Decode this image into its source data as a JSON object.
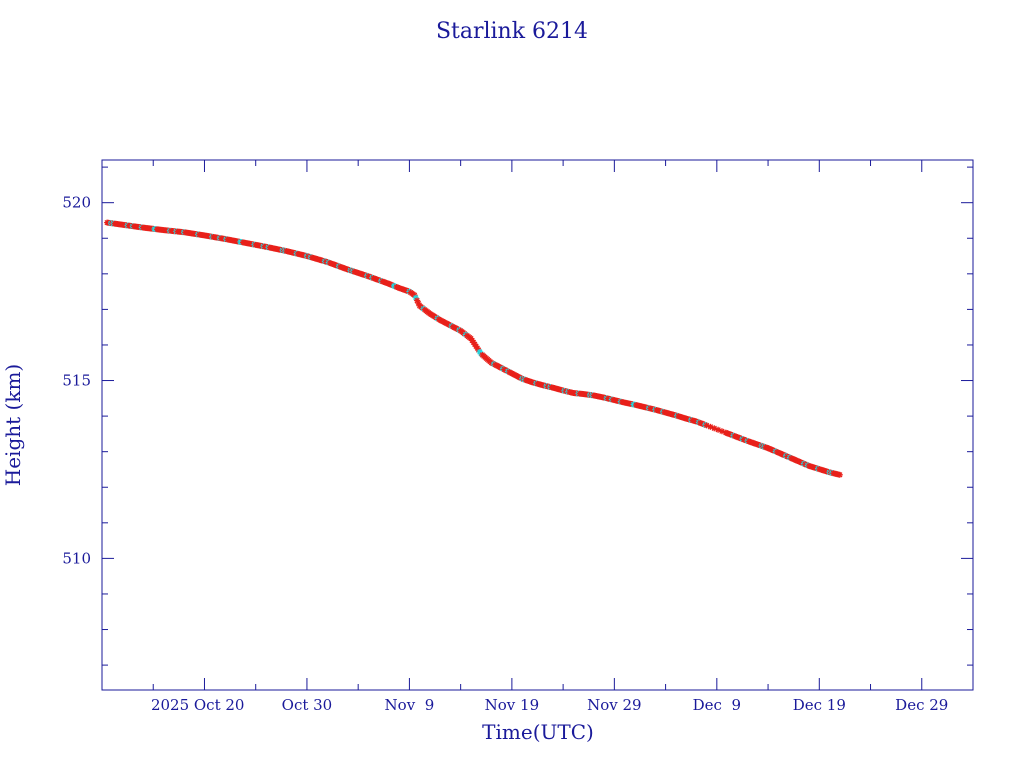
{
  "chart_data": {
    "type": "scatter",
    "title": "Starlink 6214",
    "xlabel": "Time(UTC)",
    "ylabel": "Height (km)",
    "colors": {
      "axis": "#1a1a9a",
      "text": "#1a1a9a",
      "line": "#1a1a1a",
      "marker": "#e8201a",
      "marker_highlight": "#22d8e0"
    },
    "x_axis": {
      "unit": "date",
      "range": [
        "2025-10-10",
        "2026-01-03"
      ],
      "major_ticks": [
        {
          "date": "2025-10-20",
          "label": "2025 Oct 20"
        },
        {
          "date": "2025-10-30",
          "label": "Oct 30"
        },
        {
          "date": "2025-11-09",
          "label": "Nov  9"
        },
        {
          "date": "2025-11-19",
          "label": "Nov 19"
        },
        {
          "date": "2025-11-29",
          "label": "Nov 29"
        },
        {
          "date": "2025-12-09",
          "label": "Dec  9"
        },
        {
          "date": "2025-12-19",
          "label": "Dec 19"
        },
        {
          "date": "2025-12-29",
          "label": "Dec 29"
        }
      ],
      "minor_ticks": [
        "2025-10-15",
        "2025-10-25",
        "2025-11-04",
        "2025-11-14",
        "2025-11-24",
        "2025-12-04",
        "2025-12-14",
        "2025-12-24",
        "2026-01-03"
      ]
    },
    "y_axis": {
      "range": [
        506.3,
        521.2
      ],
      "major_ticks": [
        510,
        515,
        520
      ],
      "tick_labels": [
        "510",
        "515",
        "520"
      ],
      "minor_step": 1
    },
    "grid": false,
    "series": [
      {
        "points": [
          [
            "2025-10-10T12:00",
            519.44
          ],
          [
            "2025-10-12",
            519.38
          ],
          [
            "2025-10-14",
            519.3
          ],
          [
            "2025-10-16",
            519.23
          ],
          [
            "2025-10-18",
            519.17
          ],
          [
            "2025-10-20",
            519.08
          ],
          [
            "2025-10-22",
            518.98
          ],
          [
            "2025-10-24",
            518.87
          ],
          [
            "2025-10-26",
            518.76
          ],
          [
            "2025-10-28",
            518.64
          ],
          [
            "2025-10-30",
            518.5
          ],
          [
            "2025-11-01",
            518.33
          ],
          [
            "2025-11-03",
            518.12
          ],
          [
            "2025-11-05",
            517.93
          ],
          [
            "2025-11-07",
            517.72
          ],
          [
            "2025-11-08",
            517.6
          ],
          [
            "2025-11-09",
            517.5
          ],
          [
            "2025-11-09T12:00",
            517.4
          ],
          [
            "2025-11-10",
            517.1
          ],
          [
            "2025-11-11",
            516.88
          ],
          [
            "2025-11-12",
            516.7
          ],
          [
            "2025-11-13",
            516.55
          ],
          [
            "2025-11-14",
            516.4
          ],
          [
            "2025-11-15",
            516.18
          ],
          [
            "2025-11-16",
            515.75
          ],
          [
            "2025-11-17",
            515.5
          ],
          [
            "2025-11-18",
            515.35
          ],
          [
            "2025-11-19",
            515.2
          ],
          [
            "2025-11-20",
            515.05
          ],
          [
            "2025-11-21",
            514.95
          ],
          [
            "2025-11-22",
            514.87
          ],
          [
            "2025-11-23",
            514.8
          ],
          [
            "2025-11-24",
            514.72
          ],
          [
            "2025-11-25",
            514.65
          ],
          [
            "2025-11-26",
            514.62
          ],
          [
            "2025-11-27",
            514.58
          ],
          [
            "2025-11-28",
            514.52
          ],
          [
            "2025-11-29",
            514.45
          ],
          [
            "2025-11-30",
            514.38
          ],
          [
            "2025-12-01",
            514.32
          ],
          [
            "2025-12-02",
            514.25
          ],
          [
            "2025-12-03",
            514.18
          ],
          [
            "2025-12-04",
            514.1
          ],
          [
            "2025-12-05",
            514.02
          ],
          [
            "2025-12-06",
            513.93
          ],
          [
            "2025-12-07",
            513.85
          ],
          [
            "2025-12-08",
            513.74
          ],
          [
            "2025-12-10",
            513.52
          ],
          [
            "2025-12-12",
            513.3
          ],
          [
            "2025-12-14",
            513.1
          ],
          [
            "2025-12-16",
            512.85
          ],
          [
            "2025-12-18",
            512.6
          ],
          [
            "2025-12-20",
            512.42
          ],
          [
            "2025-12-21",
            512.35
          ]
        ]
      }
    ]
  }
}
